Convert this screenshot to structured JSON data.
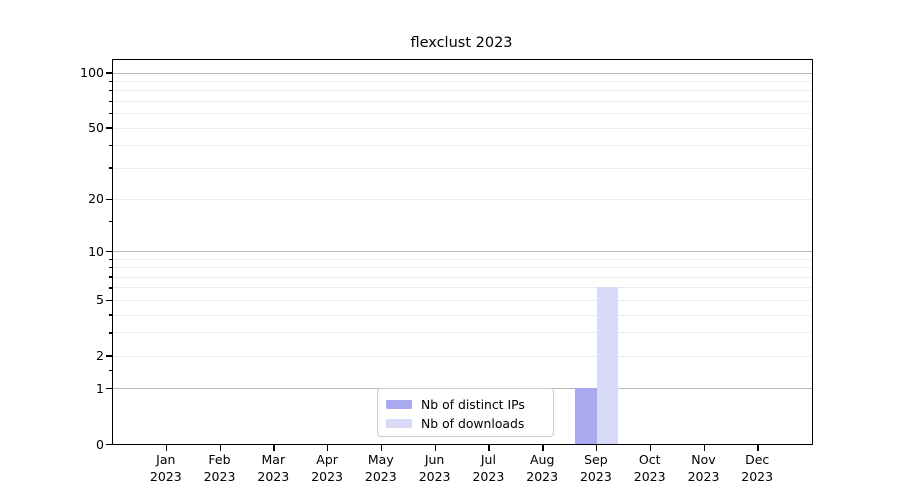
{
  "title": "flexclust 2023",
  "chart_data": {
    "type": "bar",
    "title": "flexclust 2023",
    "categories": [
      "Jan",
      "Feb",
      "Mar",
      "Apr",
      "May",
      "Jun",
      "Jul",
      "Aug",
      "Sep",
      "Oct",
      "Nov",
      "Dec"
    ],
    "category_year": "2023",
    "series": [
      {
        "name": "Nb of distinct IPs",
        "color": "#a9a9f0",
        "values": [
          0,
          0,
          0,
          0,
          0,
          0,
          0,
          0,
          1,
          0,
          0,
          0
        ]
      },
      {
        "name": "Nb of downloads",
        "color": "#d9d9f8",
        "values": [
          0,
          0,
          0,
          0,
          0,
          0,
          0,
          0,
          6,
          0,
          0,
          0
        ]
      }
    ],
    "yscale": "log1p",
    "ylim": [
      0,
      117
    ],
    "y_tick_labels": [
      0,
      1,
      2,
      5,
      10,
      20,
      50,
      100
    ],
    "y_major_gridlines": [
      1,
      10,
      100
    ],
    "y_minor_gridlines": [
      2,
      3,
      4,
      5,
      6,
      7,
      8,
      9,
      20,
      30,
      40,
      50,
      60,
      70,
      80,
      90
    ],
    "y_minor_ticks": [
      1.5,
      3,
      4,
      6,
      7,
      8,
      9,
      15,
      30,
      40,
      60,
      70,
      80,
      90
    ],
    "grid": true,
    "legend_position": "lower-center-inside",
    "legend_labels": [
      "Nb of distinct IPs",
      "Nb of downloads"
    ]
  },
  "colors": {
    "background": "#ffffff",
    "spine": "#000000",
    "major_grid": "#b9b9b9",
    "minor_grid": "#ececec",
    "legend_border": "#cccccc",
    "text": "#000000"
  }
}
